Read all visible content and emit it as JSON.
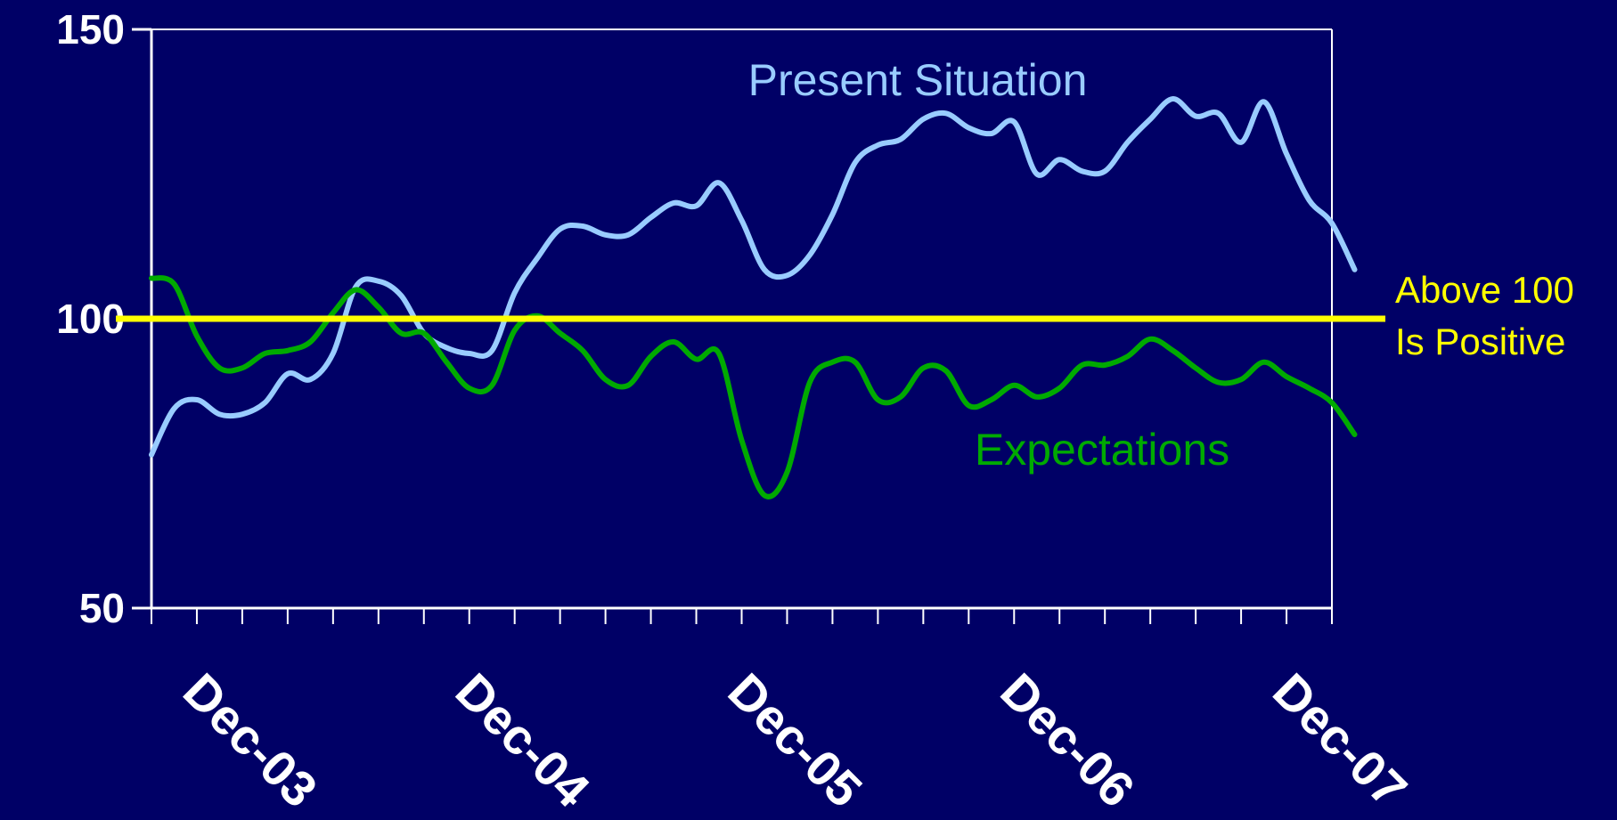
{
  "colors": {
    "background": "#000066",
    "axis": "#ffffff",
    "present": "#99ccff",
    "expectations": "#00aa00",
    "reference": "#ffff00"
  },
  "chart_data": {
    "type": "line",
    "title": "",
    "xlabel": "",
    "ylabel": "",
    "ylim": [
      50,
      150
    ],
    "yticks": [
      50,
      100,
      150
    ],
    "ytick_labels": [
      "50",
      "100",
      "150"
    ],
    "x_range": [
      "2003-07",
      "2007-11"
    ],
    "xticks": [
      "2003-12",
      "2004-12",
      "2005-12",
      "2006-12",
      "2007-12"
    ],
    "xtick_labels": [
      "Dec-03",
      "Dec-04",
      "Dec-05",
      "Dec-06",
      "Dec-07"
    ],
    "grid": false,
    "reference_line": {
      "value": 100,
      "label_lines": [
        "Above 100",
        "Is Positive"
      ]
    },
    "series": [
      {
        "name": "Present Situation",
        "points": [
          [
            "2003-07",
            76.5
          ],
          [
            "2003-08",
            84.5
          ],
          [
            "2003-09",
            86
          ],
          [
            "2003-10",
            83.5
          ],
          [
            "2003-11",
            83.5
          ],
          [
            "2003-12",
            85.5
          ],
          [
            "2004-01",
            90.5
          ],
          [
            "2004-02",
            89.5
          ],
          [
            "2004-03",
            94
          ],
          [
            "2004-04",
            105.5
          ],
          [
            "2004-05",
            106.5
          ],
          [
            "2004-06",
            104
          ],
          [
            "2004-07",
            97.5
          ],
          [
            "2004-08",
            95
          ],
          [
            "2004-09",
            94
          ],
          [
            "2004-10",
            94.5
          ],
          [
            "2004-11",
            104.5
          ],
          [
            "2004-12",
            110.5
          ],
          [
            "2005-01",
            115.5
          ],
          [
            "2005-02",
            116
          ],
          [
            "2005-03",
            114.5
          ],
          [
            "2005-04",
            114.5
          ],
          [
            "2005-05",
            117.5
          ],
          [
            "2005-06",
            120
          ],
          [
            "2005-07",
            119.5
          ],
          [
            "2005-08",
            123.5
          ],
          [
            "2005-09",
            117
          ],
          [
            "2005-10",
            108.5
          ],
          [
            "2005-11",
            107.5
          ],
          [
            "2005-12",
            111
          ],
          [
            "2006-01",
            118
          ],
          [
            "2006-02",
            127
          ],
          [
            "2006-03",
            130
          ],
          [
            "2006-04",
            131
          ],
          [
            "2006-05",
            134.5
          ],
          [
            "2006-06",
            135.5
          ],
          [
            "2006-07",
            133
          ],
          [
            "2006-08",
            132
          ],
          [
            "2006-09",
            134
          ],
          [
            "2006-10",
            125
          ],
          [
            "2006-11",
            127.5
          ],
          [
            "2006-12",
            125.5
          ],
          [
            "2007-01",
            125.5
          ],
          [
            "2007-02",
            130.5
          ],
          [
            "2007-03",
            134.5
          ],
          [
            "2007-04",
            138
          ],
          [
            "2007-05",
            135
          ],
          [
            "2007-06",
            135.5
          ],
          [
            "2007-07",
            130.5
          ],
          [
            "2007-08",
            137.5
          ],
          [
            "2007-09",
            128.5
          ],
          [
            "2007-10",
            120.5
          ],
          [
            "2007-11",
            116.5
          ],
          [
            "2007-12",
            108.5
          ]
        ]
      },
      {
        "name": "Expectations",
        "points": [
          [
            "2003-07",
            107
          ],
          [
            "2003-08",
            106
          ],
          [
            "2003-09",
            97
          ],
          [
            "2003-10",
            91.5
          ],
          [
            "2003-11",
            91.5
          ],
          [
            "2003-12",
            94
          ],
          [
            "2004-01",
            94.5
          ],
          [
            "2004-02",
            96
          ],
          [
            "2004-03",
            101
          ],
          [
            "2004-04",
            105
          ],
          [
            "2004-05",
            102
          ],
          [
            "2004-06",
            97.5
          ],
          [
            "2004-07",
            97.5
          ],
          [
            "2004-08",
            92.5
          ],
          [
            "2004-09",
            88
          ],
          [
            "2004-10",
            88.5
          ],
          [
            "2004-11",
            98
          ],
          [
            "2004-12",
            100.5
          ],
          [
            "2005-01",
            97.5
          ],
          [
            "2005-02",
            94.5
          ],
          [
            "2005-03",
            89.5
          ],
          [
            "2005-04",
            88.5
          ],
          [
            "2005-05",
            93.5
          ],
          [
            "2005-06",
            96
          ],
          [
            "2005-07",
            93
          ],
          [
            "2005-08",
            94
          ],
          [
            "2005-09",
            79
          ],
          [
            "2005-10",
            69.5
          ],
          [
            "2005-11",
            73.5
          ],
          [
            "2005-12",
            89
          ],
          [
            "2006-01",
            92.5
          ],
          [
            "2006-02",
            92.5
          ],
          [
            "2006-03",
            86
          ],
          [
            "2006-04",
            86.5
          ],
          [
            "2006-05",
            91.5
          ],
          [
            "2006-06",
            91
          ],
          [
            "2006-07",
            85
          ],
          [
            "2006-08",
            86
          ],
          [
            "2006-09",
            88.5
          ],
          [
            "2006-10",
            86.5
          ],
          [
            "2006-11",
            88
          ],
          [
            "2006-12",
            92
          ],
          [
            "2007-01",
            92
          ],
          [
            "2007-02",
            93.5
          ],
          [
            "2007-03",
            96.5
          ],
          [
            "2007-04",
            94.5
          ],
          [
            "2007-05",
            91.5
          ],
          [
            "2007-06",
            89
          ],
          [
            "2007-07",
            89.5
          ],
          [
            "2007-08",
            92.5
          ],
          [
            "2007-09",
            90
          ],
          [
            "2007-10",
            88
          ],
          [
            "2007-11",
            85.5
          ],
          [
            "2007-12",
            80
          ]
        ]
      }
    ],
    "annotations": [
      {
        "series": "Present Situation",
        "text": "Present Situation"
      },
      {
        "series": "Expectations",
        "text": "Expectations"
      }
    ]
  }
}
